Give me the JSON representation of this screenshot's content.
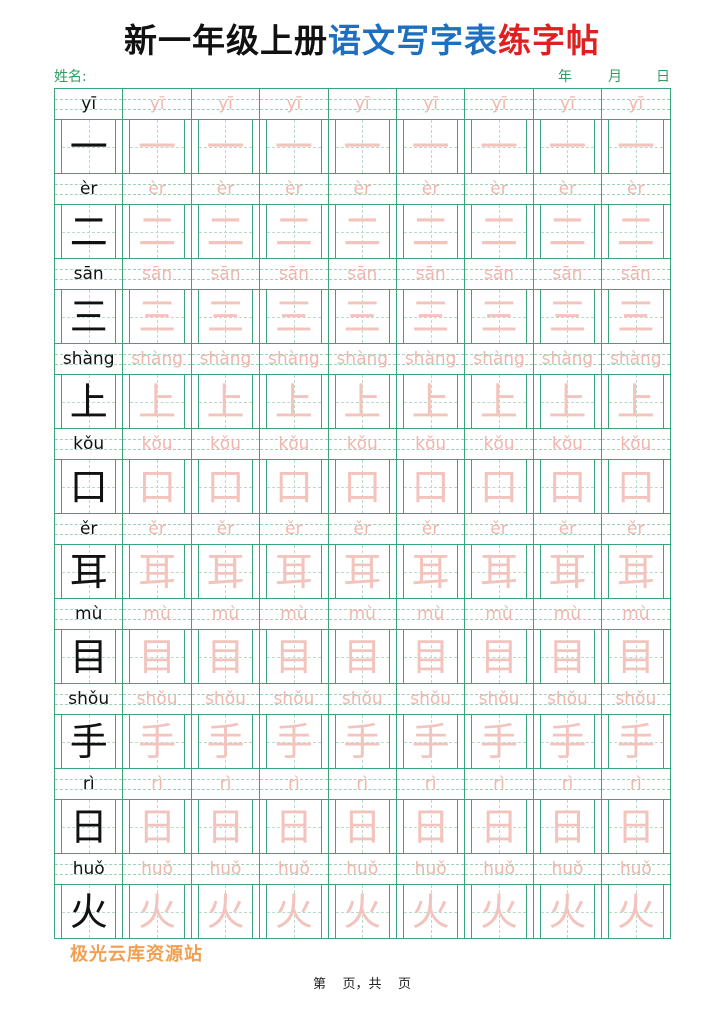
{
  "title": {
    "part1": "新一年级上册",
    "part2": "语文写字表",
    "part3": "练字帖",
    "colors": {
      "part1": "#111111",
      "part2": "#1f6fc0",
      "part3": "#e02020"
    }
  },
  "header": {
    "name_label": "姓名:",
    "year": "年",
    "month": "月",
    "day": "日"
  },
  "characters": [
    {
      "pinyin": "yī",
      "char": "一"
    },
    {
      "pinyin": "èr",
      "char": "二"
    },
    {
      "pinyin": "sān",
      "char": "三"
    },
    {
      "pinyin": "shàng",
      "char": "上"
    },
    {
      "pinyin": "kǒu",
      "char": "口"
    },
    {
      "pinyin": "ěr",
      "char": "耳"
    },
    {
      "pinyin": "mù",
      "char": "目"
    },
    {
      "pinyin": "shǒu",
      "char": "手"
    },
    {
      "pinyin": "rì",
      "char": "日"
    },
    {
      "pinyin": "huǒ",
      "char": "火"
    }
  ],
  "watermark": "极光云库资源站",
  "footer": "第    页，共    页",
  "colors": {
    "grid": "#3aa57a",
    "trace": "#f3c4bd",
    "label": "#2e9e5e"
  }
}
